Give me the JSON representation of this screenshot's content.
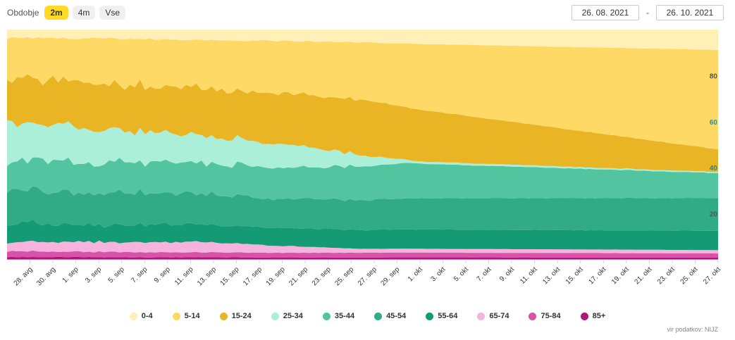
{
  "toolbar": {
    "period_label": "Obdobje",
    "buttons": [
      {
        "label": "2m",
        "active": true
      },
      {
        "label": "4m",
        "active": false
      },
      {
        "label": "Vse",
        "active": false
      }
    ],
    "date_from": "26. 08. 2021",
    "date_separator": "-",
    "date_to": "26. 10. 2021"
  },
  "source_note": "vir podatkov: NIJZ",
  "chart_data": {
    "type": "area",
    "stacking": "percent",
    "x_start": "2021-08-26",
    "x_end": "2021-10-27",
    "x_tick_labels": [
      "28. avg",
      "30. avg",
      "1. sep",
      "3. sep",
      "5. sep",
      "7. sep",
      "9. sep",
      "11. sep",
      "13. sep",
      "15. sep",
      "17. sep",
      "19. sep",
      "21. sep",
      "23. sep",
      "25. sep",
      "27. sep",
      "29. sep",
      "1. okt",
      "3. okt",
      "5. okt",
      "7. okt",
      "9. okt",
      "11. okt",
      "13. okt",
      "15. okt",
      "17. okt",
      "19. okt",
      "21. okt",
      "23. okt",
      "25. okt",
      "27. okt"
    ],
    "y_tick_labels": [
      "20",
      "40",
      "60",
      "80"
    ],
    "ylim": [
      0,
      100
    ],
    "legend_position": "bottom",
    "series": [
      {
        "name": "85+",
        "color": "#b0157a",
        "key_x": [
          0,
          0.5,
          1
        ],
        "key_y": [
          1.2,
          1.1,
          1.0
        ]
      },
      {
        "name": "75-84",
        "color": "#d752a8",
        "key_x": [
          0,
          0.5,
          1
        ],
        "key_y": [
          2.5,
          2.2,
          1.8
        ]
      },
      {
        "name": "65-74",
        "color": "#f5b3dd",
        "key_x": [
          0,
          0.27,
          0.37,
          0.5,
          1
        ],
        "key_y": [
          4.0,
          5.0,
          3.5,
          1.8,
          1.5
        ]
      },
      {
        "name": "55-64",
        "color": "#149b74",
        "key_x": [
          0,
          0.5,
          1
        ],
        "key_y": [
          8.0,
          8.8,
          8.5
        ]
      },
      {
        "name": "45-54",
        "color": "#31aa86",
        "key_x": [
          0,
          0.5,
          1
        ],
        "key_y": [
          15.0,
          14.0,
          14.5
        ]
      },
      {
        "name": "35-44",
        "color": "#52c5a0",
        "key_x": [
          0,
          0.55,
          1
        ],
        "key_y": [
          13.0,
          16.0,
          11.0
        ]
      },
      {
        "name": "25-34",
        "color": "#abefd9",
        "key_x": [
          0,
          0.4,
          0.57,
          1
        ],
        "key_y": [
          17.0,
          11.0,
          1.0,
          0.5
        ]
      },
      {
        "name": "15-24",
        "color": "#e9b524",
        "key_x": [
          0,
          0.5,
          1
        ],
        "key_y": [
          19.0,
          26.0,
          10.0
        ]
      },
      {
        "name": "5-14",
        "color": "#ffd966",
        "key_x": [
          0,
          0.5,
          1
        ],
        "key_y": [
          18.0,
          27.0,
          44.0
        ]
      },
      {
        "name": "0-4",
        "color": "#fff0b8",
        "key_x": [
          0,
          0.5,
          1
        ],
        "key_y": [
          3.5,
          6.0,
          9.0
        ]
      }
    ]
  }
}
